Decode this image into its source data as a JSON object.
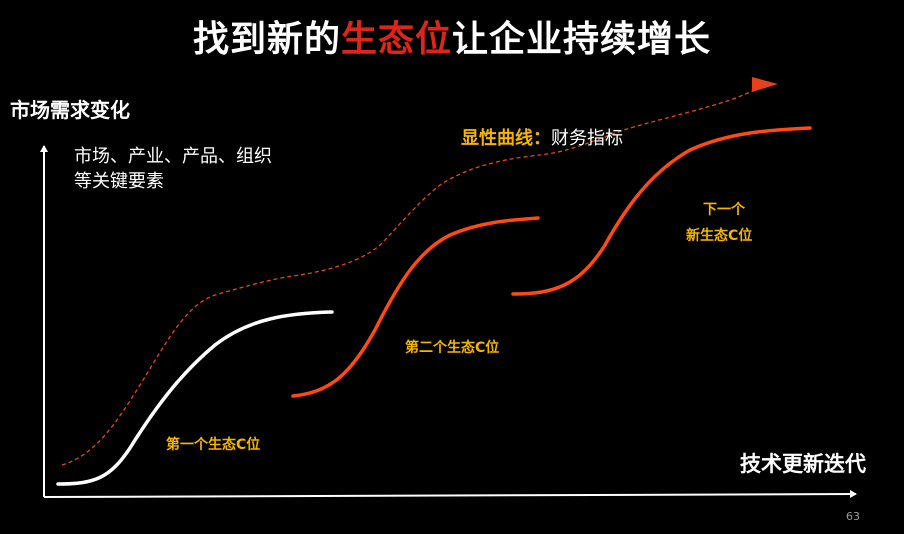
{
  "title": {
    "pre": "找到新的",
    "highlight": "生态位",
    "post": "让企业持续增长"
  },
  "y_axis_label": "市场需求变化",
  "y_axis_desc": [
    "市场、产业、产品、组织",
    "等关键要素"
  ],
  "x_axis_label": "技术更新迭代",
  "legend": {
    "key": "显性曲线：",
    "value": "财务指标"
  },
  "curve_labels": {
    "first": "第一个生态C位",
    "second": "第二个生态C位",
    "next_line1": "下一个",
    "next_line2": "新生态C位"
  },
  "page_number": "63",
  "colors": {
    "highlight": "#e0241a",
    "label": "#f4b400",
    "curve_orange": "#ff4a14",
    "curve_white": "#ffffff",
    "dashed": "#e3471d"
  }
}
